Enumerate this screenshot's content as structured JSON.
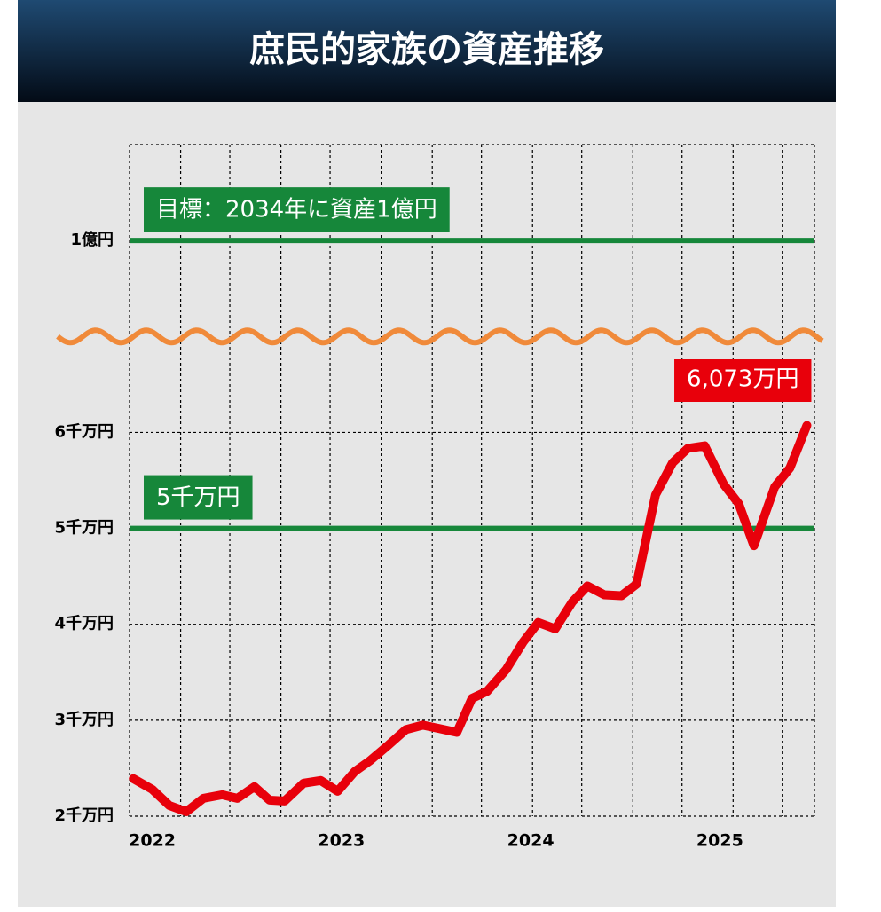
{
  "chart_data": {
    "type": "line",
    "title": "庶民的家族の資産推移",
    "xlim": [
      2021.88,
      2025.5
    ],
    "xticks": [
      2022,
      2023,
      2024,
      2025
    ],
    "x_grid": [
      2021.88,
      2022.15,
      2022.41,
      2022.68,
      2022.94,
      2023.21,
      2023.48,
      2023.74,
      2024.01,
      2024.27,
      2024.54,
      2024.8,
      2025.07,
      2025.33,
      2025.5
    ],
    "ylim": [
      2000,
      11000
    ],
    "y_break": [
      7000,
      9000
    ],
    "yticks": [
      {
        "value": 2000,
        "label": "2千万円"
      },
      {
        "value": 3000,
        "label": "3千万円"
      },
      {
        "value": 4000,
        "label": "4千万円"
      },
      {
        "value": 5000,
        "label": "5千万円"
      },
      {
        "value": 6000,
        "label": "6千万円"
      },
      {
        "value": 10000,
        "label": "1億円"
      }
    ],
    "grid": true,
    "reference_lines": [
      {
        "value": 5000,
        "label": "5千万円",
        "color": "#16873a"
      },
      {
        "value": 10000,
        "label": "目標：2034年に資産1億円",
        "color": "#16873a"
      }
    ],
    "series": [
      {
        "color": "#e8000b",
        "x": [
          2021.9,
          2022.0,
          2022.09,
          2022.18,
          2022.27,
          2022.37,
          2022.45,
          2022.54,
          2022.62,
          2022.7,
          2022.8,
          2022.89,
          2022.98,
          2023.07,
          2023.15,
          2023.25,
          2023.34,
          2023.43,
          2023.52,
          2023.61,
          2023.69,
          2023.77,
          2023.87,
          2023.96,
          2024.04,
          2024.13,
          2024.22,
          2024.3,
          2024.39,
          2024.48,
          2024.56,
          2024.66,
          2024.75,
          2024.83,
          2024.92,
          2025.02,
          2025.1,
          2025.18,
          2025.29,
          2025.37,
          2025.46
        ],
        "values": [
          2391,
          2279,
          2112,
          2047,
          2186,
          2223,
          2186,
          2307,
          2167,
          2158,
          2344,
          2372,
          2260,
          2465,
          2577,
          2744,
          2902,
          2949,
          2912,
          2874,
          3228,
          3302,
          3526,
          3814,
          4019,
          3953,
          4233,
          4400,
          4307,
          4298,
          4419,
          5349,
          5684,
          5833,
          5860,
          5460,
          5256,
          4819,
          5433,
          5628,
          6073
        ],
        "value_labels": [
          null,
          null,
          null,
          null,
          null,
          null,
          null,
          null,
          null,
          null,
          null,
          null,
          null,
          null,
          null,
          null,
          null,
          null,
          null,
          null,
          null,
          null,
          null,
          null,
          null,
          null,
          null,
          null,
          null,
          null,
          null,
          null,
          null,
          null,
          null,
          null,
          null,
          null,
          null,
          null,
          "6,073万円"
        ]
      }
    ]
  }
}
